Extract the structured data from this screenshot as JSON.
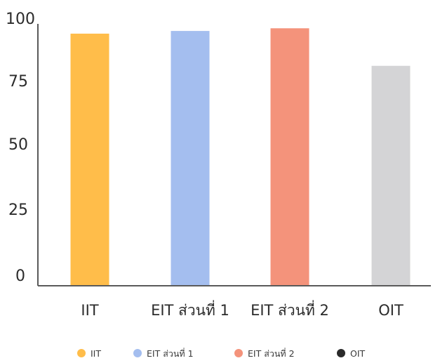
{
  "chart_data": {
    "type": "bar",
    "categories": [
      "IIT",
      "EIT ส่วนที่ 1",
      "EIT ส่วนที่ 2",
      "OIT"
    ],
    "values": [
      94,
      95,
      96,
      82
    ],
    "colors": [
      "#FFBD4A",
      "#A4BEEF",
      "#F4937B",
      "#D4D4D6"
    ],
    "legend_marker_colors": [
      "#FFBD4A",
      "#A4BEEF",
      "#F4937B",
      "#2A2A2A"
    ],
    "title": "",
    "xlabel": "",
    "ylabel": "",
    "ylim": [
      0,
      100
    ],
    "yticks": [
      "0",
      "25",
      "50",
      "75",
      "100"
    ],
    "grid": false,
    "legend": {
      "placement": "bottom",
      "entries": [
        "IIT",
        "EIT ส่วนที่ 1",
        "EIT ส่วนที่ 2",
        "OIT"
      ]
    }
  }
}
